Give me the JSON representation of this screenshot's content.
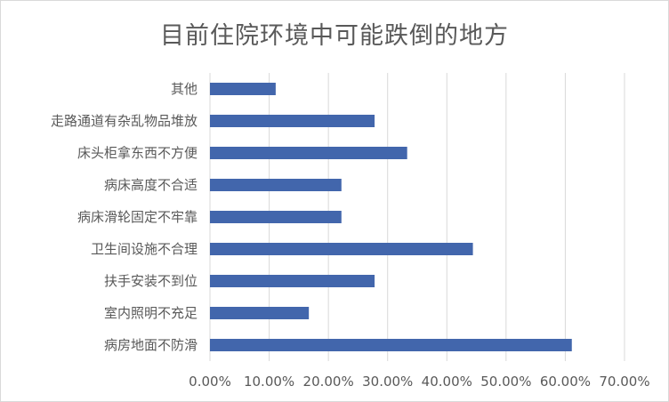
{
  "chart_data": {
    "type": "bar",
    "orientation": "horizontal",
    "title": "目前住院环境中可能跌倒的地方",
    "categories": [
      "病房地面不防滑",
      "室内照明不充足",
      "扶手安装不到位",
      "卫生间设施不合理",
      "病床滑轮固定不牢靠",
      "病床高度不合适",
      "床头柜拿东西不方便",
      "走路通道有杂乱物品堆放",
      "其他"
    ],
    "values": [
      61.1,
      16.7,
      27.8,
      44.4,
      22.2,
      22.2,
      33.3,
      27.8,
      11.1
    ],
    "xlim": [
      0,
      70
    ],
    "x_ticks": [
      0,
      10,
      20,
      30,
      40,
      50,
      60,
      70
    ],
    "x_tick_labels": [
      "0.00%",
      "10.00%",
      "20.00%",
      "30.00%",
      "40.00%",
      "50.00%",
      "60.00%",
      "70.00%"
    ],
    "grid": "vertical",
    "legend": "none",
    "bar_color": "#4266ac",
    "grid_color": "#d9d9d9"
  }
}
